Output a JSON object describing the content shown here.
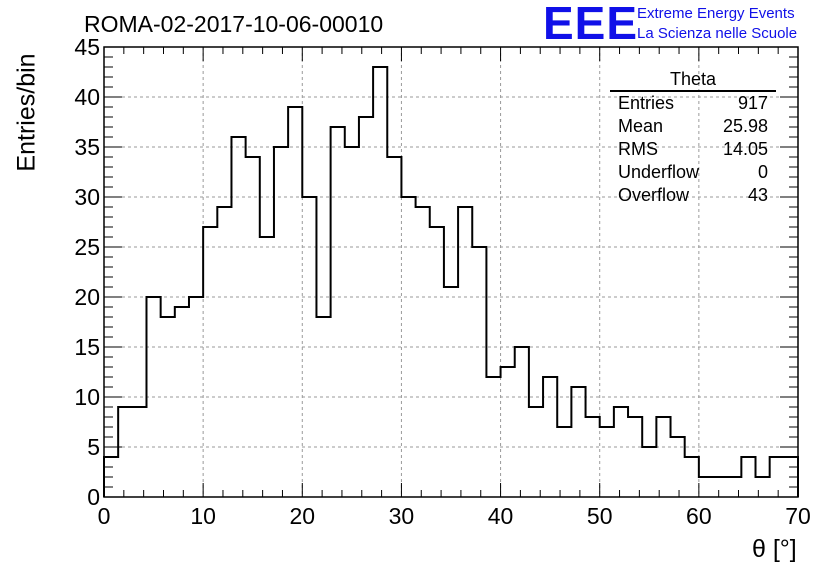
{
  "header": {
    "run_id": "ROMA-02-2017-10-06-00010",
    "logo_mark": "EEE",
    "logo_line1": "Extreme Energy Events",
    "logo_line2": "La Scienza nelle Scuole"
  },
  "stats_box": {
    "title": "Theta",
    "rows": [
      {
        "label": "Entries",
        "value": "917"
      },
      {
        "label": "Mean",
        "value": "25.98"
      },
      {
        "label": "RMS",
        "value": "14.05"
      },
      {
        "label": "Underflow",
        "value": "0"
      },
      {
        "label": "Overflow",
        "value": "43"
      }
    ]
  },
  "chart_data": {
    "type": "bar",
    "style": "step-histogram",
    "title": "ROMA-02-2017-10-06-00010",
    "xlabel": "θ [°]",
    "ylabel": "Entries/bin",
    "xlim": [
      0,
      70
    ],
    "ylim": [
      0,
      45
    ],
    "x_ticks": [
      0,
      10,
      20,
      30,
      40,
      50,
      60,
      70
    ],
    "y_ticks": [
      0,
      5,
      10,
      15,
      20,
      25,
      30,
      35,
      40,
      45
    ],
    "bin_width": 1.4286,
    "bin_low_edges": [
      0,
      1.43,
      2.86,
      4.29,
      5.71,
      7.14,
      8.57,
      10.0,
      11.43,
      12.86,
      14.29,
      15.71,
      17.14,
      18.57,
      20.0,
      21.43,
      22.86,
      24.29,
      25.71,
      27.14,
      28.57,
      30.0,
      31.43,
      32.86,
      34.29,
      35.71,
      37.14,
      38.57,
      40.0,
      41.43,
      42.86,
      44.29,
      45.71,
      47.14,
      48.57,
      50.0,
      51.43,
      52.86,
      54.29,
      55.71,
      57.14,
      58.57,
      60.0,
      61.43,
      62.86,
      64.29,
      65.71,
      67.14,
      68.57
    ],
    "values": [
      4,
      9,
      9,
      20,
      18,
      19,
      20,
      27,
      29,
      36,
      34,
      26,
      35,
      39,
      30,
      18,
      37,
      35,
      38,
      43,
      34,
      30,
      29,
      27,
      21,
      29,
      25,
      12,
      13,
      15,
      9,
      12,
      7,
      11,
      8,
      7,
      9,
      8,
      5,
      8,
      6,
      4,
      2,
      2,
      2,
      4,
      2,
      4,
      4
    ],
    "grid": true,
    "legend": "top-right stats box",
    "line_color": "#000000"
  }
}
